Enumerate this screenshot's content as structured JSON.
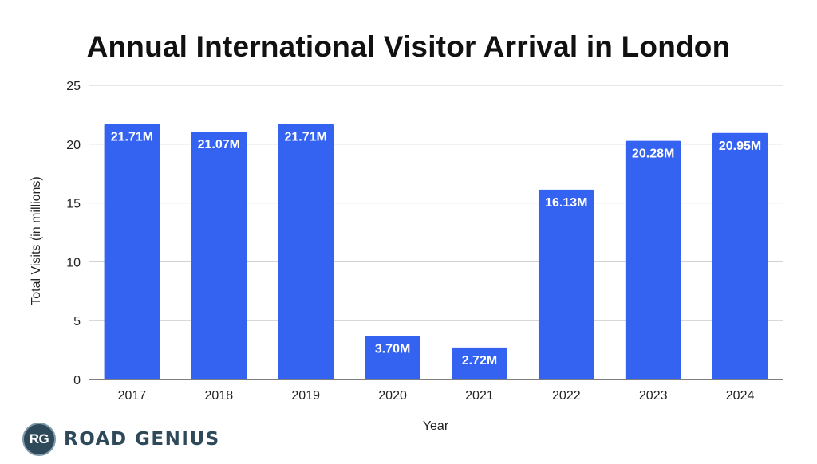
{
  "chart_data": {
    "type": "bar",
    "title": "Annual International Visitor Arrival in London",
    "xlabel": "Year",
    "ylabel": "Total Visits (in millions)",
    "categories": [
      "2017",
      "2018",
      "2019",
      "2020",
      "2021",
      "2022",
      "2023",
      "2024"
    ],
    "values": [
      21.71,
      21.07,
      21.71,
      3.7,
      2.72,
      16.13,
      20.28,
      20.95
    ],
    "data_labels": [
      "21.71M",
      "21.07M",
      "21.71M",
      "3.70M",
      "2.72M",
      "16.13M",
      "20.28M",
      "20.95M"
    ],
    "ylim": [
      0,
      25
    ],
    "yticks": [
      0,
      5,
      10,
      15,
      20,
      25
    ],
    "grid": true,
    "legend": "none",
    "bar_color": "#3563f1"
  },
  "brand": {
    "logo_text": "RG",
    "name": "ROAD GENIUS",
    "color": "#2e4a5a"
  }
}
